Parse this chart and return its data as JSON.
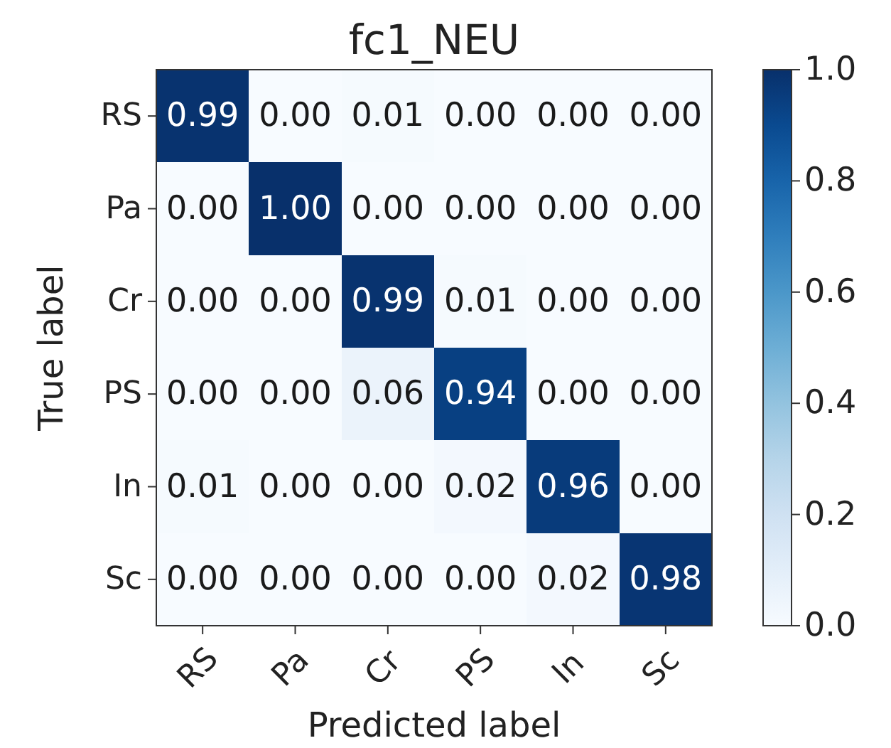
{
  "chart_data": {
    "type": "heatmap",
    "title": "fc1_NEU",
    "xlabel": "Predicted label",
    "ylabel": "True label",
    "categories": [
      "RS",
      "Pa",
      "Cr",
      "PS",
      "In",
      "Sc"
    ],
    "y_categories": [
      "RS",
      "Pa",
      "Cr",
      "PS",
      "In",
      "Sc"
    ],
    "cells": [
      [
        0.99,
        0,
        0.01,
        0,
        0,
        0
      ],
      [
        0,
        1,
        0,
        0,
        0,
        0
      ],
      [
        0,
        0,
        0.99,
        0.01,
        0,
        0
      ],
      [
        0,
        0,
        0.06,
        0.94,
        0,
        0
      ],
      [
        0.01,
        0,
        0,
        0.02,
        0.96,
        0
      ],
      [
        0,
        0,
        0,
        0,
        0.02,
        0.98
      ]
    ],
    "cell_labels": [
      [
        "0.99",
        "0.00",
        "0.01",
        "0.00",
        "0.00",
        "0.00"
      ],
      [
        "0.00",
        "1.00",
        "0.00",
        "0.00",
        "0.00",
        "0.00"
      ],
      [
        "0.00",
        "0.00",
        "0.99",
        "0.01",
        "0.00",
        "0.00"
      ],
      [
        "0.00",
        "0.00",
        "0.06",
        "0.94",
        "0.00",
        "0.00"
      ],
      [
        "0.01",
        "0.00",
        "0.00",
        "0.02",
        "0.96",
        "0.00"
      ],
      [
        "0.00",
        "0.00",
        "0.00",
        "0.00",
        "0.02",
        "0.98"
      ]
    ],
    "clim": [
      0,
      1
    ],
    "cticks": [
      {
        "value": 0,
        "label": "0.0"
      },
      0.2,
      0.4,
      0.6,
      0.8,
      {
        "value": 1,
        "label": "1.0"
      }
    ]
  }
}
